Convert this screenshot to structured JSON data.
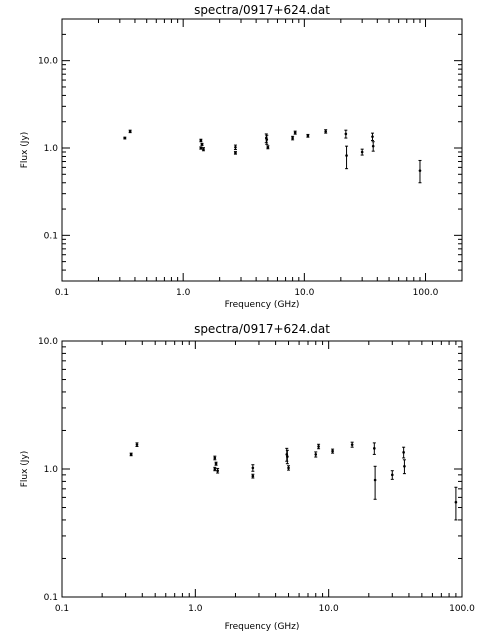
{
  "chart_data": [
    {
      "type": "scatter",
      "title": "spectra/0917+624.dat",
      "xlabel": "Frequency (GHz)",
      "ylabel": "Flux (Jy)",
      "xscale": "log",
      "yscale": "log",
      "xlim": [
        0.1,
        200
      ],
      "ylim": [
        0.03,
        30
      ],
      "xticks": [
        {
          "value": 0.1,
          "label": "0.1"
        },
        {
          "value": 1,
          "label": "1.0"
        },
        {
          "value": 10,
          "label": "10.0"
        },
        {
          "value": 100,
          "label": "100.0"
        }
      ],
      "yticks": [
        {
          "value": 0.1,
          "label": "0.1"
        },
        {
          "value": 1,
          "label": "1.0"
        },
        {
          "value": 10,
          "label": "10.0"
        }
      ],
      "grid": false,
      "points": [
        {
          "x": 0.33,
          "y": 1.3,
          "ylo": 1.27,
          "yhi": 1.33
        },
        {
          "x": 0.365,
          "y": 1.55,
          "ylo": 1.5,
          "yhi": 1.6
        },
        {
          "x": 1.4,
          "y": 1.22,
          "ylo": 1.18,
          "yhi": 1.26
        },
        {
          "x": 1.4,
          "y": 1.0,
          "ylo": 0.97,
          "yhi": 1.03
        },
        {
          "x": 1.43,
          "y": 1.1,
          "ylo": 1.07,
          "yhi": 1.13
        },
        {
          "x": 1.47,
          "y": 0.97,
          "ylo": 0.93,
          "yhi": 1.01
        },
        {
          "x": 2.7,
          "y": 1.02,
          "ylo": 0.96,
          "yhi": 1.08
        },
        {
          "x": 2.7,
          "y": 0.88,
          "ylo": 0.85,
          "yhi": 0.91
        },
        {
          "x": 4.85,
          "y": 1.3,
          "ylo": 1.15,
          "yhi": 1.45
        },
        {
          "x": 4.9,
          "y": 1.25,
          "ylo": 1.1,
          "yhi": 1.4
        },
        {
          "x": 5.0,
          "y": 1.02,
          "ylo": 0.98,
          "yhi": 1.06
        },
        {
          "x": 8.0,
          "y": 1.3,
          "ylo": 1.24,
          "yhi": 1.36
        },
        {
          "x": 8.4,
          "y": 1.5,
          "ylo": 1.44,
          "yhi": 1.56
        },
        {
          "x": 10.7,
          "y": 1.38,
          "ylo": 1.33,
          "yhi": 1.43
        },
        {
          "x": 15.0,
          "y": 1.55,
          "ylo": 1.48,
          "yhi": 1.62
        },
        {
          "x": 22.0,
          "y": 1.45,
          "ylo": 1.3,
          "yhi": 1.6
        },
        {
          "x": 22.3,
          "y": 0.82,
          "ylo": 0.58,
          "yhi": 1.05
        },
        {
          "x": 30.0,
          "y": 0.9,
          "ylo": 0.83,
          "yhi": 0.97
        },
        {
          "x": 36.5,
          "y": 1.35,
          "ylo": 1.22,
          "yhi": 1.48
        },
        {
          "x": 37.0,
          "y": 1.05,
          "ylo": 0.92,
          "yhi": 1.18
        },
        {
          "x": 90.0,
          "y": 0.55,
          "ylo": 0.4,
          "yhi": 0.72
        }
      ]
    },
    {
      "type": "scatter",
      "title": "spectra/0917+624.dat",
      "xlabel": "Frequency (GHz)",
      "ylabel": "Flux (Jy)",
      "xscale": "log",
      "yscale": "log",
      "xlim": [
        0.1,
        100
      ],
      "ylim": [
        0.1,
        10
      ],
      "xticks": [
        {
          "value": 0.1,
          "label": "0.1"
        },
        {
          "value": 1,
          "label": "1.0"
        },
        {
          "value": 10,
          "label": "10.0"
        },
        {
          "value": 100,
          "label": "100.0"
        }
      ],
      "yticks": [
        {
          "value": 0.1,
          "label": "0.1"
        },
        {
          "value": 1,
          "label": "1.0"
        },
        {
          "value": 10,
          "label": "10.0"
        }
      ],
      "grid": false,
      "points": [
        {
          "x": 0.33,
          "y": 1.3,
          "ylo": 1.27,
          "yhi": 1.33
        },
        {
          "x": 0.365,
          "y": 1.55,
          "ylo": 1.5,
          "yhi": 1.6
        },
        {
          "x": 1.4,
          "y": 1.22,
          "ylo": 1.18,
          "yhi": 1.26
        },
        {
          "x": 1.4,
          "y": 1.0,
          "ylo": 0.97,
          "yhi": 1.03
        },
        {
          "x": 1.43,
          "y": 1.1,
          "ylo": 1.07,
          "yhi": 1.13
        },
        {
          "x": 1.47,
          "y": 0.97,
          "ylo": 0.93,
          "yhi": 1.01
        },
        {
          "x": 2.7,
          "y": 1.02,
          "ylo": 0.96,
          "yhi": 1.08
        },
        {
          "x": 2.7,
          "y": 0.88,
          "ylo": 0.85,
          "yhi": 0.91
        },
        {
          "x": 4.85,
          "y": 1.3,
          "ylo": 1.15,
          "yhi": 1.45
        },
        {
          "x": 4.9,
          "y": 1.25,
          "ylo": 1.1,
          "yhi": 1.4
        },
        {
          "x": 5.0,
          "y": 1.02,
          "ylo": 0.98,
          "yhi": 1.06
        },
        {
          "x": 8.0,
          "y": 1.3,
          "ylo": 1.24,
          "yhi": 1.36
        },
        {
          "x": 8.4,
          "y": 1.5,
          "ylo": 1.44,
          "yhi": 1.56
        },
        {
          "x": 10.7,
          "y": 1.38,
          "ylo": 1.33,
          "yhi": 1.43
        },
        {
          "x": 15.0,
          "y": 1.55,
          "ylo": 1.48,
          "yhi": 1.62
        },
        {
          "x": 22.0,
          "y": 1.45,
          "ylo": 1.3,
          "yhi": 1.6
        },
        {
          "x": 22.3,
          "y": 0.82,
          "ylo": 0.58,
          "yhi": 1.05
        },
        {
          "x": 30.0,
          "y": 0.9,
          "ylo": 0.83,
          "yhi": 0.97
        },
        {
          "x": 36.5,
          "y": 1.35,
          "ylo": 1.22,
          "yhi": 1.48
        },
        {
          "x": 37.0,
          "y": 1.05,
          "ylo": 0.92,
          "yhi": 1.18
        },
        {
          "x": 90.0,
          "y": 0.55,
          "ylo": 0.4,
          "yhi": 0.72
        }
      ]
    }
  ]
}
